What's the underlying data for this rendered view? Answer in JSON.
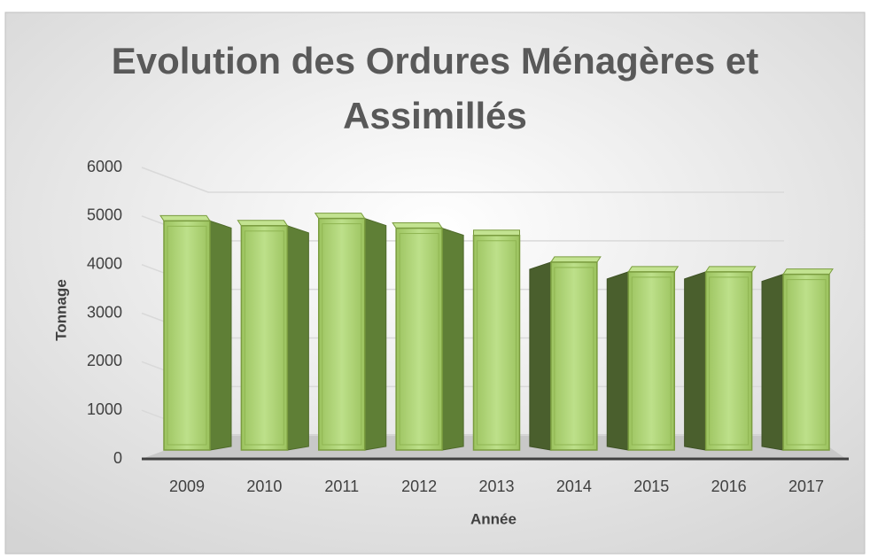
{
  "chart_data": {
    "type": "bar3d",
    "title": "Evolution des Ordures Ménagères et Assimillés",
    "x_label": "Année",
    "y_label": "Tonnage",
    "categories": [
      "2009",
      "2010",
      "2011",
      "2012",
      "2013",
      "2014",
      "2015",
      "2016",
      "2017"
    ],
    "values": [
      4900,
      4800,
      4950,
      4750,
      4600,
      4050,
      3850,
      3850,
      3800
    ],
    "color": "#a9d06c",
    "ylim": [
      0,
      6000
    ],
    "yticks": [
      0,
      1000,
      2000,
      3000,
      4000,
      5000,
      6000
    ],
    "grid": true
  }
}
